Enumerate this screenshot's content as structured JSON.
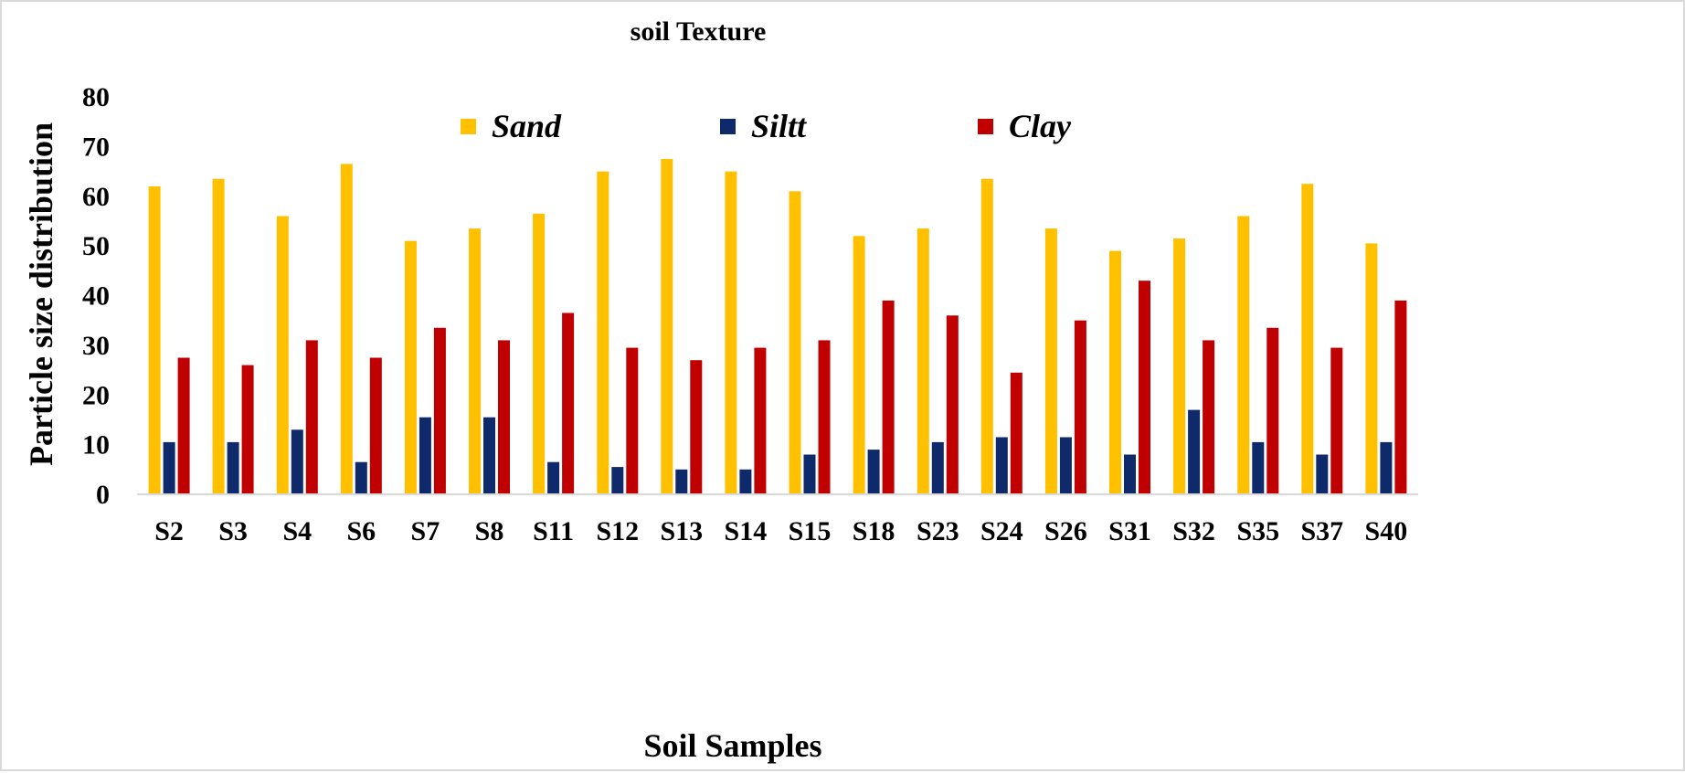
{
  "chart_data": {
    "type": "bar",
    "title": "soil Texture",
    "xlabel": "Soil Samples",
    "ylabel": "Particle size distribution",
    "ylim": [
      0,
      80
    ],
    "yticks": [
      0,
      10,
      20,
      30,
      40,
      50,
      60,
      70,
      80
    ],
    "grid": false,
    "legend_position": "top",
    "categories": [
      "S2",
      "S3",
      "S4",
      "S6",
      "S7",
      "S8",
      "S11",
      "S12",
      "S13",
      "S14",
      "S15",
      "S18",
      "S23",
      "S24",
      "S26",
      "S31",
      "S32",
      "S35",
      "S37",
      "S40"
    ],
    "series": [
      {
        "name": "Sand",
        "color": "#FFC000",
        "values": [
          62,
          63.5,
          56,
          66.5,
          51,
          53.5,
          56.5,
          65,
          67.5,
          65,
          61,
          52,
          53.5,
          63.5,
          53.5,
          49,
          51.5,
          56,
          62.5,
          50.5
        ]
      },
      {
        "name": "Siltt",
        "color": "#0F2A6B",
        "values": [
          10.5,
          10.5,
          13,
          6.5,
          15.5,
          15.5,
          6.5,
          5.5,
          5,
          5,
          8,
          9,
          10.5,
          11.5,
          11.5,
          8,
          17,
          10.5,
          8,
          10.5
        ]
      },
      {
        "name": "Clay",
        "color": "#C00000",
        "values": [
          27.5,
          26,
          31,
          27.5,
          33.5,
          31,
          36.5,
          29.5,
          27,
          29.5,
          31,
          39,
          36,
          24.5,
          35,
          43,
          31,
          33.5,
          29.5,
          39
        ]
      }
    ]
  }
}
